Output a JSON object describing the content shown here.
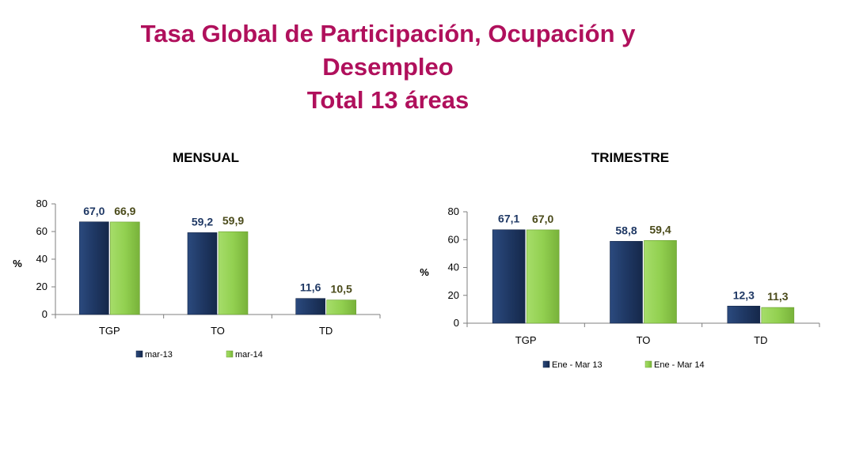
{
  "page": {
    "title_lines": [
      "Tasa Global de Participación, Ocupación y",
      "Desempleo",
      "Total 13 áreas"
    ]
  },
  "colors": {
    "title": "#b0105c",
    "series1": "#1f3864",
    "series2": "#92d050",
    "label1": "#1f3864",
    "label2": "#4a4a1a"
  },
  "chart_data": [
    {
      "type": "bar",
      "title": "MENSUAL",
      "ylabel": "%",
      "xlabel": "",
      "ylim": [
        0,
        80
      ],
      "yticks": [
        0,
        20,
        40,
        60,
        80
      ],
      "categories": [
        "TGP",
        "TO",
        "TD"
      ],
      "series": [
        {
          "name": "mar-13",
          "values": [
            67.0,
            59.2,
            11.6
          ],
          "labels": [
            "67,0",
            "59,2",
            "11,6"
          ]
        },
        {
          "name": "mar-14",
          "values": [
            66.9,
            59.9,
            10.5
          ],
          "labels": [
            "66,9",
            "59,9",
            "10,5"
          ]
        }
      ],
      "legend": "bottom",
      "grid": false
    },
    {
      "type": "bar",
      "title": "TRIMESTRE",
      "ylabel": "%",
      "xlabel": "",
      "ylim": [
        0,
        80
      ],
      "yticks": [
        0,
        20,
        40,
        60,
        80
      ],
      "categories": [
        "TGP",
        "TO",
        "TD"
      ],
      "series": [
        {
          "name": "Ene - Mar 13",
          "values": [
            67.1,
            58.8,
            12.3
          ],
          "labels": [
            "67,1",
            "58,8",
            "12,3"
          ]
        },
        {
          "name": "Ene - Mar 14",
          "values": [
            67.0,
            59.4,
            11.3
          ],
          "labels": [
            "67,0",
            "59,4",
            "11,3"
          ]
        }
      ],
      "legend": "bottom",
      "grid": false
    }
  ]
}
